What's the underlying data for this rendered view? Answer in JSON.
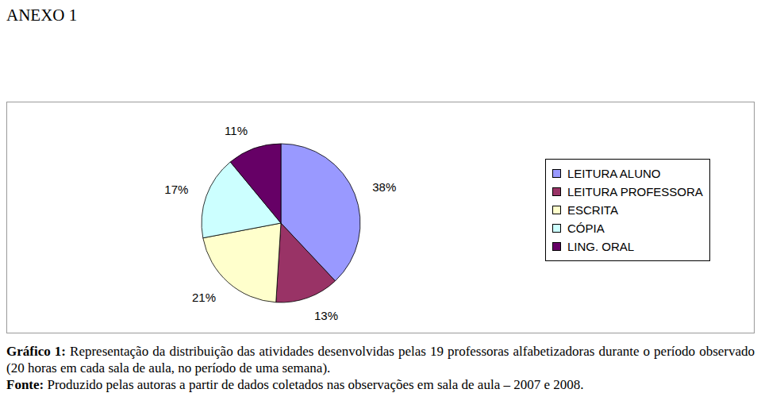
{
  "heading": "ANEXO 1",
  "chart_data": {
    "type": "pie",
    "categories": [
      "LEITURA ALUNO",
      "LEITURA PROFESSORA",
      "ESCRITA",
      "CÓPIA",
      "LING. ORAL"
    ],
    "values": [
      38,
      13,
      21,
      17,
      11
    ],
    "value_labels": [
      "38%",
      "13%",
      "21%",
      "17%",
      "11%"
    ],
    "colors": [
      "#9999ff",
      "#993366",
      "#ffffcc",
      "#ccffff",
      "#660066"
    ],
    "data_labels": true,
    "legend": "right"
  },
  "caption": {
    "label": "Gráfico 1:",
    "text": "Representação da distribuição das atividades desenvolvidas pelas 19 professoras alfabetizadoras durante o período observado (20 horas em cada sala de aula, no período de uma semana)."
  },
  "source": {
    "label": "Fonte:",
    "text": "Produzido pelas autoras a partir de dados coletados nas observações em sala de aula – 2007 e 2008."
  }
}
